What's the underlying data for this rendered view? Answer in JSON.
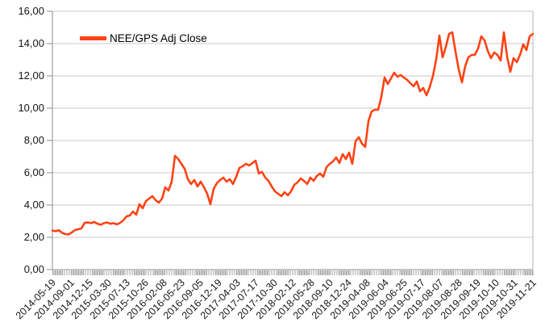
{
  "chart_data": {
    "type": "line",
    "title": "",
    "xlabel": "",
    "ylabel": "",
    "ylim": [
      0,
      16
    ],
    "grid": true,
    "legend_position": "top-left-inside",
    "y_ticks": [
      0,
      2,
      4,
      6,
      8,
      10,
      12,
      14,
      16
    ],
    "y_tick_labels": [
      "0,00",
      "2,00",
      "4,00",
      "6,00",
      "8,00",
      "10,00",
      "12,00",
      "14,00",
      "16,00"
    ],
    "x_tick_labels": [
      "2014-05-19",
      "2014-09-01",
      "2014-12-15",
      "2015-03-30",
      "2015-07-13",
      "2015-10-26",
      "2016-02-08",
      "2016-05-23",
      "2016-09-05",
      "2016-12-19",
      "2017-04-03",
      "2017-07-17",
      "2017-10-30",
      "2018-02-12",
      "2018-05-28",
      "2018-09-10",
      "2018-12-24",
      "2019-04-08",
      "2019-06-04",
      "2019-06-25",
      "2019-07-17",
      "2019-08-07",
      "2019-08-28",
      "2019-09-19",
      "2019-10-10",
      "2019-10-31",
      "2019-11-21"
    ],
    "series": [
      {
        "name": "NEE/GPS Adj Close",
        "color": "#ff4214",
        "values": [
          2.42,
          2.38,
          2.44,
          2.28,
          2.2,
          2.18,
          2.3,
          2.45,
          2.5,
          2.55,
          2.9,
          2.92,
          2.88,
          2.95,
          2.84,
          2.78,
          2.88,
          2.92,
          2.84,
          2.88,
          2.8,
          2.9,
          3.05,
          3.3,
          3.35,
          3.6,
          3.4,
          4.05,
          3.8,
          4.25,
          4.4,
          4.55,
          4.3,
          4.15,
          4.4,
          5.1,
          4.9,
          5.45,
          7.05,
          6.85,
          6.55,
          6.25,
          5.6,
          5.3,
          5.55,
          5.15,
          5.45,
          5.1,
          4.7,
          4.05,
          5.0,
          5.35,
          5.55,
          5.7,
          5.45,
          5.6,
          5.3,
          5.75,
          6.3,
          6.4,
          6.55,
          6.45,
          6.6,
          6.75,
          5.95,
          6.05,
          5.7,
          5.5,
          5.15,
          4.85,
          4.7,
          4.55,
          4.8,
          4.6,
          4.85,
          5.25,
          5.4,
          5.65,
          5.5,
          5.3,
          5.7,
          5.5,
          5.8,
          5.95,
          5.75,
          6.35,
          6.55,
          6.7,
          6.95,
          6.6,
          7.15,
          6.85,
          7.25,
          6.55,
          7.95,
          8.2,
          7.8,
          7.6,
          9.2,
          9.8,
          9.9,
          9.9,
          10.7,
          11.9,
          11.5,
          11.85,
          12.2,
          11.95,
          12.05,
          11.9,
          11.75,
          11.55,
          11.35,
          11.65,
          11.05,
          11.25,
          10.8,
          11.3,
          12.0,
          13.0,
          14.5,
          13.15,
          13.8,
          14.6,
          14.7,
          13.5,
          12.4,
          11.6,
          12.6,
          13.15,
          13.3,
          13.3,
          13.7,
          14.45,
          14.2,
          13.55,
          13.1,
          13.45,
          13.3,
          12.95,
          14.7,
          13.2,
          12.25,
          13.1,
          12.85,
          13.3,
          13.95,
          13.6,
          14.45,
          14.6
        ]
      }
    ]
  },
  "legend": {
    "label": "NEE/GPS Adj Close"
  },
  "colors": {
    "line": "#ff4214",
    "gridline": "#c9c9c9",
    "axis": "#8c8c8c",
    "right_border": "#b4b4b4",
    "text": "#161616"
  }
}
